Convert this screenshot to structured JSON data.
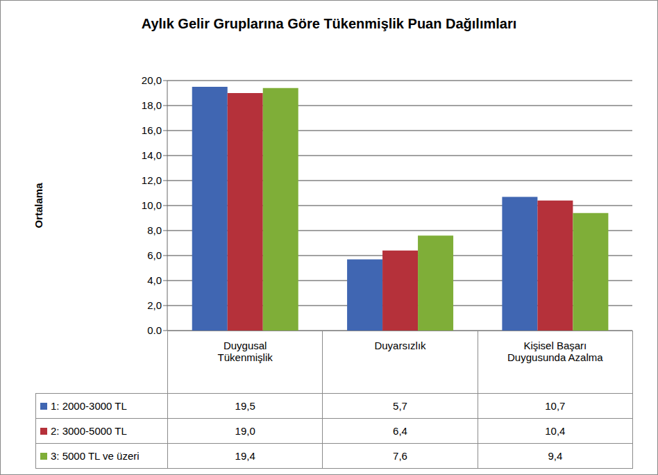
{
  "chart_data": {
    "type": "bar",
    "title": "Aylık Gelir Gruplarına Göre Tükenmişlik Puan Dağılımları",
    "y_label": "Ortalama",
    "categories": [
      "Duygusal Tükenmişlik",
      "Duyarsızlık",
      "Kişisel Başarı Duygusunda Azalma"
    ],
    "series": [
      {
        "name": "1: 2000-3000 TL",
        "color": "#4066b2",
        "values": [
          19.5,
          5.7,
          10.7
        ],
        "value_labels": [
          "19,5",
          "5,7",
          "10,7"
        ]
      },
      {
        "name": "2: 3000-5000 TL",
        "color": "#b5313a",
        "values": [
          19.0,
          6.4,
          10.4
        ],
        "value_labels": [
          "19,0",
          "6,4",
          "10,4"
        ]
      },
      {
        "name": "3: 5000 TL ve üzeri",
        "color": "#7fae38",
        "values": [
          19.4,
          7.6,
          9.4
        ],
        "value_labels": [
          "19,4",
          "7,6",
          "9,4"
        ]
      }
    ],
    "ylim": [
      0,
      20
    ],
    "yticks": [
      {
        "value": 0,
        "label": "0,0"
      },
      {
        "value": 2,
        "label": "2,0"
      },
      {
        "value": 4,
        "label": "4,0"
      },
      {
        "value": 6,
        "label": "6,0"
      },
      {
        "value": 8,
        "label": "8,0"
      },
      {
        "value": 10,
        "label": "10,0"
      },
      {
        "value": 12,
        "label": "12,0"
      },
      {
        "value": 14,
        "label": "14,0"
      },
      {
        "value": 16,
        "label": "16,0"
      },
      {
        "value": 18,
        "label": "18,0"
      },
      {
        "value": 20,
        "label": "20,0"
      }
    ],
    "grid": true
  }
}
